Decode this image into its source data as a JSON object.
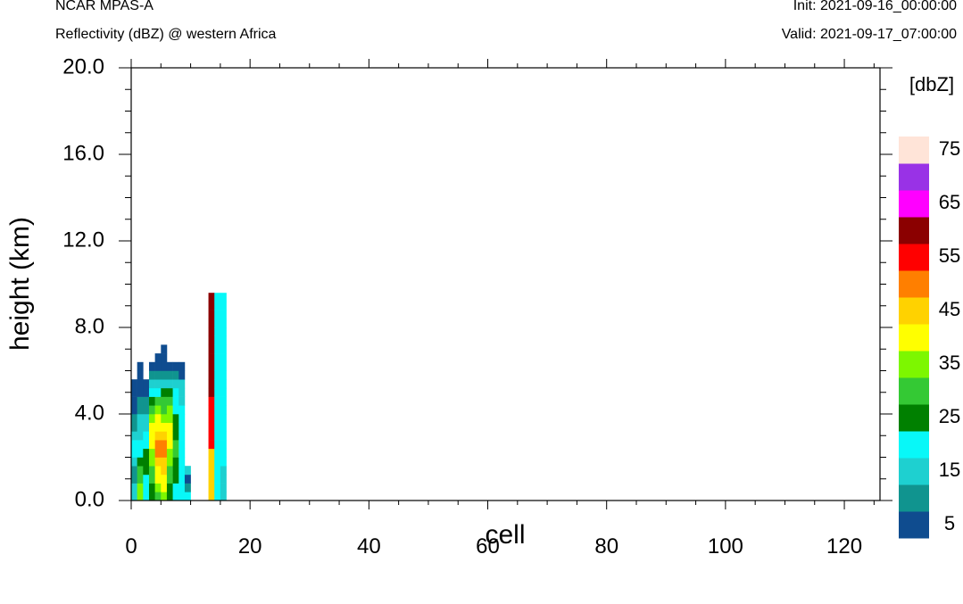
{
  "header": {
    "model": "NCAR MPAS-A",
    "subtitle": "Reflectivity (dBZ) @ western Africa",
    "init": "Init: 2021-09-16_00:00:00",
    "valid": "Valid: 2021-09-17_07:00:00"
  },
  "chart_data": {
    "type": "heatmap",
    "title": "Reflectivity (dBZ) @ western Africa",
    "xlabel": "cell",
    "ylabel": "height (km)",
    "xlim": [
      0,
      126
    ],
    "ylim": [
      0,
      20
    ],
    "x_ticks": [
      0,
      20,
      40,
      60,
      80,
      100,
      120
    ],
    "y_ticks": [
      0,
      4,
      8,
      12,
      16,
      20
    ],
    "x_tick_labels": [
      "0",
      "20",
      "40",
      "60",
      "80",
      "100",
      "120"
    ],
    "y_tick_labels": [
      "0.0",
      "4.0",
      "8.0",
      "12.0",
      "16.0",
      "20.0"
    ],
    "units_label": "[dbZ]",
    "colorbar": {
      "labels": [
        "5",
        "15",
        "25",
        "35",
        "45",
        "55",
        "65",
        "75"
      ],
      "colors": [
        "#0f4c8f",
        "#10948f",
        "#1ed0d0",
        "#08f8f8",
        "#008000",
        "#34c934",
        "#7df700",
        "#ffff00",
        "#ffd200",
        "#ff7f00",
        "#ff0000",
        "#8b0000",
        "#ff00ff",
        "#9932e6",
        "#ffe4d8"
      ]
    },
    "cell_height_km": 0.4,
    "columns": [
      {
        "x": 0,
        "c": [
          3,
          3,
          2,
          2,
          3,
          4,
          4,
          3,
          2,
          2,
          1,
          1,
          1,
          1,
          0,
          0,
          0,
          0,
          0,
          0,
          0,
          0,
          0,
          0,
          0
        ]
      },
      {
        "x": 1,
        "c": [
          7,
          7,
          6,
          6,
          5,
          4,
          4,
          3,
          3,
          3,
          2,
          2,
          1,
          1,
          1,
          1,
          0,
          0,
          0,
          0,
          0,
          0,
          0,
          0,
          0
        ]
      },
      {
        "x": 2,
        "c": [
          4,
          4,
          4,
          5,
          5,
          5,
          4,
          4,
          3,
          3,
          2,
          2,
          1,
          1,
          0,
          0,
          0,
          0,
          0,
          0,
          0,
          0,
          0,
          0,
          0
        ]
      },
      {
        "x": 3,
        "c": [
          5,
          5,
          6,
          6,
          7,
          7,
          8,
          8,
          8,
          7,
          6,
          5,
          4,
          3,
          2,
          1,
          0,
          0,
          0,
          0,
          0,
          0,
          0,
          0,
          0
        ]
      },
      {
        "x": 4,
        "c": [
          6,
          7,
          8,
          8,
          9,
          10,
          10,
          9,
          8,
          8,
          7,
          6,
          4,
          3,
          2,
          1,
          1,
          0,
          0,
          0,
          0,
          0,
          0,
          0,
          0
        ]
      },
      {
        "x": 5,
        "c": [
          7,
          8,
          8,
          9,
          9,
          10,
          10,
          9,
          8,
          7,
          6,
          6,
          5,
          3,
          2,
          1,
          1,
          1,
          0,
          0,
          0,
          0,
          0,
          0,
          0
        ]
      },
      {
        "x": 6,
        "c": [
          5,
          5,
          6,
          6,
          7,
          7,
          8,
          8,
          8,
          7,
          7,
          6,
          5,
          3,
          2,
          1,
          0,
          0,
          0,
          0,
          0,
          0,
          0,
          0,
          0
        ]
      },
      {
        "x": 7,
        "c": [
          4,
          4,
          5,
          5,
          5,
          6,
          6,
          5,
          5,
          5,
          4,
          4,
          4,
          3,
          2,
          1,
          0,
          0,
          0,
          0,
          0,
          0,
          0,
          0,
          0
        ]
      },
      {
        "x": 8,
        "c": [
          4,
          4,
          4,
          4,
          4,
          4,
          4,
          4,
          4,
          4,
          4,
          3,
          3,
          3,
          1,
          1,
          0,
          0,
          0,
          0,
          0,
          0,
          0,
          0,
          0
        ]
      },
      {
        "x": 9,
        "c": [
          4,
          2,
          1,
          3,
          0,
          0,
          0,
          0,
          0,
          0,
          0,
          0,
          0,
          0,
          0,
          0,
          0,
          0,
          0,
          0,
          0,
          0,
          0,
          0,
          0
        ]
      },
      {
        "x": 13,
        "c": [
          9,
          9,
          9,
          9,
          9,
          9,
          11,
          11,
          11,
          11,
          11,
          11,
          12,
          12,
          12,
          12,
          12,
          12,
          12,
          12,
          12,
          12,
          12,
          12,
          0
        ]
      },
      {
        "x": 14,
        "c": [
          4,
          4,
          4,
          4,
          4,
          4,
          4,
          4,
          4,
          4,
          4,
          4,
          4,
          4,
          4,
          4,
          4,
          4,
          4,
          4,
          4,
          4,
          4,
          4,
          0
        ]
      },
      {
        "x": 15,
        "c": [
          3,
          3,
          3,
          3,
          4,
          4,
          4,
          4,
          4,
          4,
          4,
          4,
          4,
          4,
          4,
          4,
          4,
          4,
          4,
          4,
          4,
          4,
          4,
          4,
          0
        ]
      }
    ]
  }
}
